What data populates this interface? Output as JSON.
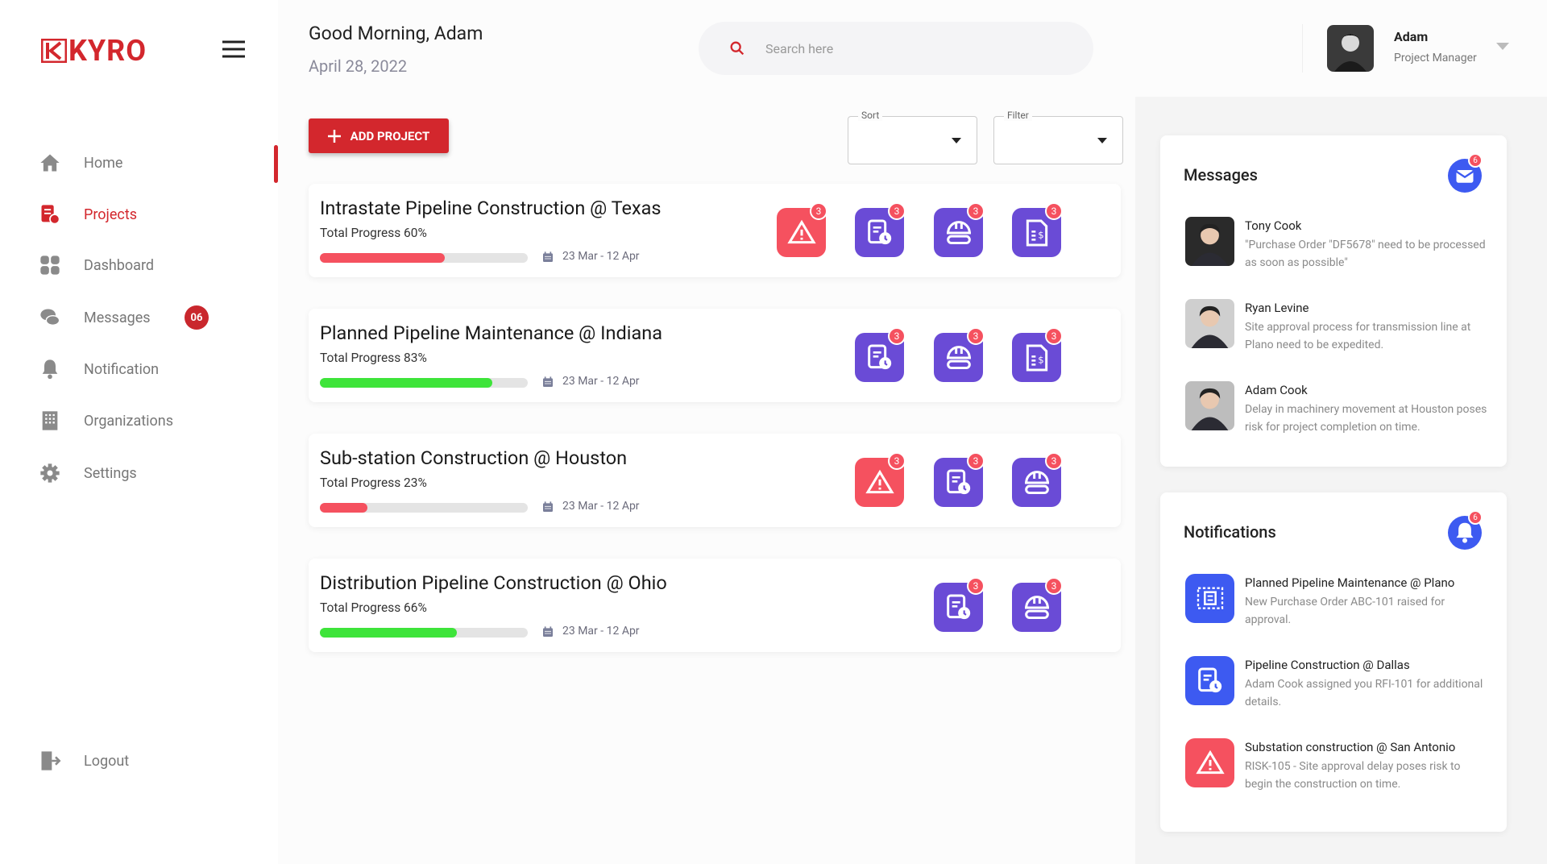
{
  "brand": "KYRO",
  "nav": {
    "items": [
      {
        "label": "Home"
      },
      {
        "label": "Projects"
      },
      {
        "label": "Dashboard"
      },
      {
        "label": "Messages",
        "badge": "06"
      },
      {
        "label": "Notification"
      },
      {
        "label": "Organizations"
      },
      {
        "label": "Settings"
      }
    ],
    "logout": "Logout"
  },
  "header": {
    "greeting": "Good Morning, Adam",
    "date": "April 28, 2022",
    "search_placeholder": "Search here",
    "user_name": "Adam",
    "user_role": "Project Manager"
  },
  "toolbar": {
    "add_button": "ADD PROJECT",
    "sort": "Sort",
    "filter": "Filter"
  },
  "projects": [
    {
      "title": "Intrastate Pipeline Construction @ Texas",
      "progress_label": "Total Progress 60%",
      "progress": 60,
      "color": "#f5515f",
      "dates": "23 Mar - 12 Apr",
      "icons": [
        {
          "type": "risk",
          "count": 3
        },
        {
          "type": "rfi",
          "count": 3
        },
        {
          "type": "safety",
          "count": 3
        },
        {
          "type": "doc",
          "count": 3
        }
      ]
    },
    {
      "title": "Planned Pipeline Maintenance @ Indiana",
      "progress_label": "Total Progress 83%",
      "progress": 83,
      "color": "#3ee43a",
      "dates": "23 Mar - 12 Apr",
      "icons": [
        {
          "type": "rfi",
          "count": 3
        },
        {
          "type": "safety",
          "count": 3
        },
        {
          "type": "doc",
          "count": 3
        }
      ]
    },
    {
      "title": "Sub-station Construction @ Houston",
      "progress_label": "Total Progress 23%",
      "progress": 23,
      "color": "#f5515f",
      "dates": "23 Mar - 12 Apr",
      "icons": [
        {
          "type": "risk",
          "count": 3
        },
        {
          "type": "rfi",
          "count": 3
        },
        {
          "type": "safety",
          "count": 3
        }
      ]
    },
    {
      "title": "Distribution Pipeline Construction @ Ohio",
      "progress_label": "Total Progress 66%",
      "progress": 66,
      "color": "#3ee43a",
      "dates": "23 Mar - 12 Apr",
      "icons": [
        {
          "type": "rfi",
          "count": 3
        },
        {
          "type": "safety",
          "count": 3
        }
      ]
    }
  ],
  "messages": {
    "title": "Messages",
    "badge": 6,
    "items": [
      {
        "name": "Tony Cook",
        "text": "\"Purchase Order \"DF5678\" need to be processed as soon as possible\""
      },
      {
        "name": "Ryan Levine",
        "text": "Site approval process for transmission line at Plano need to be expedited."
      },
      {
        "name": "Adam Cook",
        "text": "Delay in machinery movement at Houston poses risk for project completion on time."
      }
    ]
  },
  "notifications": {
    "title": "Notifications",
    "badge": 6,
    "items": [
      {
        "type": "plan",
        "title": "Planned Pipeline Maintenance @ Plano",
        "text": "New Purchase Order ABC-101 raised for approval."
      },
      {
        "type": "rfi",
        "title": "Pipeline Construction @ Dallas",
        "text": "Adam Cook assigned you RFI-101 for additional details."
      },
      {
        "type": "risk",
        "title": "Substation construction @ San Antonio",
        "text": "RISK-105 - Site approval delay poses risk to begin the construction on time."
      }
    ]
  }
}
